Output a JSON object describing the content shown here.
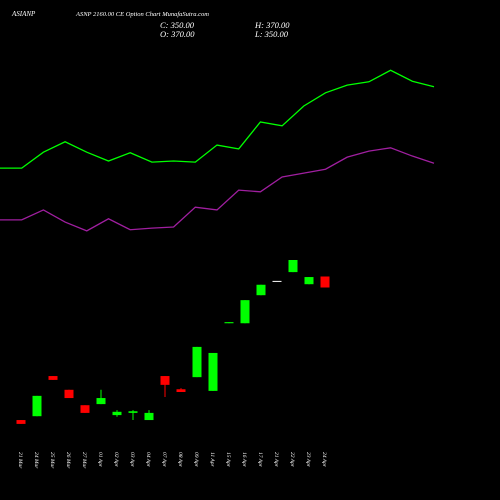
{
  "header": {
    "symbol": "ASIANP",
    "title": "ASNP 2160.00 CE Option Chart MunafaSutra.com",
    "close": "C: 350.00",
    "high": "H: 370.00",
    "open": "O: 370.00",
    "low": "L: 350.00"
  },
  "chart_data": [
    {
      "type": "line",
      "ylim": [
        0,
        800
      ],
      "series": [
        {
          "color": "#00ff00",
          "values": [
            567,
            567,
            596,
            615,
            596,
            580,
            595,
            578,
            580,
            578,
            609,
            602,
            651,
            644,
            680,
            704,
            718,
            724,
            745,
            725,
            715
          ]
        },
        {
          "color": "#a01fa0",
          "values": [
            473,
            473,
            491,
            469,
            453,
            475,
            455,
            458,
            460,
            496,
            491,
            527,
            524,
            551,
            558,
            565,
            587,
            598,
            604,
            589,
            576
          ]
        }
      ]
    },
    {
      "type": "candlestick",
      "ylim": [
        0,
        800
      ],
      "up_color": "#00ff00",
      "down_color": "#ff0000",
      "flat_color": "#ffffff",
      "categories": [
        "21 Mar",
        "24 Mar",
        "25 Mar",
        "26 Mar",
        "27 Mar",
        "01 Apr",
        "02 Apr",
        "03 Apr",
        "04 Apr",
        "07 Apr",
        "08 Apr",
        "09 Apr",
        "11 Apr",
        "15 Apr",
        "16 Apr",
        "17 Apr",
        "21 Apr",
        "22 Apr",
        "23 Apr",
        "24 Apr"
      ],
      "open": [
        109,
        116,
        189,
        164,
        136,
        138,
        118,
        122,
        109,
        189,
        165,
        187,
        162,
        285,
        285,
        336,
        362,
        378,
        356,
        370
      ],
      "high": [
        109,
        153,
        189,
        164,
        136,
        164,
        127,
        127,
        127,
        189,
        167,
        242,
        231,
        287,
        327,
        355,
        362,
        400,
        369,
        370
      ],
      "low": [
        102,
        116,
        182,
        149,
        122,
        138,
        115,
        109,
        109,
        151,
        160,
        187,
        162,
        285,
        285,
        336,
        362,
        378,
        356,
        350
      ],
      "close": [
        102,
        153,
        182,
        149,
        122,
        149,
        124,
        125,
        122,
        173,
        160,
        242,
        231,
        287,
        327,
        355,
        362,
        400,
        369,
        350
      ]
    }
  ]
}
